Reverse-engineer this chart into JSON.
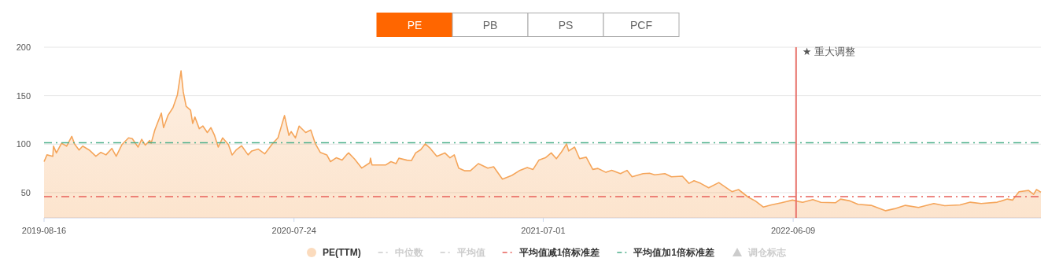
{
  "chart_data": {
    "type": "area",
    "annotations": [
      "PE",
      "PB",
      "PS",
      "PCF"
    ],
    "xlim": [
      "2019-08-16",
      "2023-05-15"
    ],
    "xticks": [
      "2019-08-16",
      "2020-07-24",
      "2021-07-01",
      "2022-06-09"
    ],
    "ylim": [
      24,
      200
    ],
    "yticks": [
      50,
      100,
      150,
      200
    ],
    "grid": "y",
    "legend": "bottom",
    "series": [
      {
        "name": "PE(TTM)",
        "color": "#f5a55a",
        "x": [
          "2019-08-16",
          "2019-08-20",
          "2019-08-28",
          "2019-08-29",
          "2019-09-02",
          "2019-09-09",
          "2019-09-16",
          "2019-09-23",
          "2019-09-27",
          "2019-10-03",
          "2019-10-08",
          "2019-10-17",
          "2019-10-26",
          "2019-11-02",
          "2019-11-09",
          "2019-11-17",
          "2019-11-23",
          "2019-12-01",
          "2019-12-10",
          "2019-12-15",
          "2019-12-23",
          "2019-12-28",
          "2020-01-02",
          "2020-01-08",
          "2020-01-10",
          "2020-01-15",
          "2020-01-24",
          "2020-01-27",
          "2020-02-02",
          "2020-02-09",
          "2020-02-15",
          "2020-02-20",
          "2020-02-23",
          "2020-02-27",
          "2020-03-04",
          "2020-03-07",
          "2020-03-10",
          "2020-03-16",
          "2020-03-21",
          "2020-03-27",
          "2020-04-01",
          "2020-04-06",
          "2020-04-11",
          "2020-04-17",
          "2020-04-25",
          "2020-04-30",
          "2020-05-06",
          "2020-05-13",
          "2020-05-22",
          "2020-05-27",
          "2020-06-05",
          "2020-06-14",
          "2020-06-25",
          "2020-07-02",
          "2020-07-11",
          "2020-07-17",
          "2020-07-20",
          "2020-07-26",
          "2020-07-31",
          "2020-08-09",
          "2020-08-16",
          "2020-08-22",
          "2020-08-29",
          "2020-09-07",
          "2020-09-12",
          "2020-09-20",
          "2020-09-28",
          "2020-10-04",
          "2020-10-07",
          "2020-10-15",
          "2020-10-25",
          "2020-11-05",
          "2020-11-06",
          "2020-11-08",
          "2020-11-27",
          "2020-12-04",
          "2020-12-11",
          "2020-12-15",
          "2020-12-26",
          "2021-01-01",
          "2021-01-07",
          "2021-01-14",
          "2021-01-20",
          "2021-01-27",
          "2021-02-05",
          "2021-02-16",
          "2021-02-23",
          "2021-03-01",
          "2021-03-07",
          "2021-03-15",
          "2021-03-23",
          "2021-04-03",
          "2021-04-16",
          "2021-04-24",
          "2021-05-06",
          "2021-05-19",
          "2021-05-29",
          "2021-06-09",
          "2021-06-17",
          "2021-06-25",
          "2021-07-04",
          "2021-07-12",
          "2021-07-19",
          "2021-07-26",
          "2021-08-02",
          "2021-08-05",
          "2021-08-13",
          "2021-08-20",
          "2021-08-29",
          "2021-09-07",
          "2021-09-14",
          "2021-09-25",
          "2021-10-03",
          "2021-10-15",
          "2021-10-24",
          "2021-10-31",
          "2021-11-15",
          "2021-11-24",
          "2021-12-01",
          "2021-12-15",
          "2021-12-24",
          "2022-01-08",
          "2022-01-17",
          "2022-01-24",
          "2022-02-02",
          "2022-02-13",
          "2022-02-27",
          "2022-03-17",
          "2022-03-26",
          "2022-04-08",
          "2022-04-18",
          "2022-04-29",
          "2022-05-10",
          "2022-05-24",
          "2022-06-08",
          "2022-06-22",
          "2022-07-06",
          "2022-07-17",
          "2022-08-06",
          "2022-08-13",
          "2022-08-26",
          "2022-09-06",
          "2022-09-24",
          "2022-10-14",
          "2022-10-26",
          "2022-11-10",
          "2022-11-28",
          "2022-12-19",
          "2023-01-03",
          "2023-01-24",
          "2023-02-07",
          "2023-02-22",
          "2023-03-16",
          "2023-03-30",
          "2023-04-06",
          "2023-04-15",
          "2023-04-28",
          "2023-05-05",
          "2023-05-09",
          "2023-05-15"
        ],
        "values": [
          82,
          89,
          87.5,
          98,
          91,
          101,
          98,
          108,
          100,
          94,
          98,
          94,
          87.5,
          91.6,
          89,
          95.6,
          87.5,
          99.7,
          106.5,
          105.7,
          97,
          105,
          99,
          103.8,
          101,
          114.6,
          132,
          117,
          129.5,
          137.7,
          151,
          175.6,
          154,
          139,
          135,
          121.4,
          128,
          116,
          118.7,
          112,
          117,
          109,
          97,
          106.5,
          99.7,
          89,
          94.3,
          98.4,
          89,
          93,
          94.9,
          90,
          101,
          106.5,
          129.5,
          109,
          113,
          106.5,
          118.7,
          112,
          114.6,
          101,
          91.6,
          89,
          82,
          86,
          83.5,
          89,
          91,
          84.8,
          75.3,
          80.8,
          85.6,
          78.6,
          78.6,
          82,
          80,
          85.6,
          83.5,
          83,
          91,
          94.3,
          100.3,
          95.6,
          87.5,
          91,
          86,
          89,
          75.3,
          72.6,
          72.6,
          80,
          75.3,
          76.7,
          64,
          67.8,
          72.6,
          76,
          74,
          83.5,
          86,
          91,
          85,
          92,
          100.3,
          93,
          97,
          85,
          86.5,
          74,
          75,
          71,
          73,
          69.6,
          73,
          66.4,
          69.6,
          70,
          68.4,
          69.6,
          66.4,
          67,
          59.6,
          62.3,
          59.6,
          55,
          60.4,
          51,
          53.2,
          45.5,
          41.5,
          35.2,
          37.4,
          39.6,
          42.3,
          40,
          42.8,
          40,
          39.6,
          43.4,
          41.5,
          38,
          36.9,
          31.4,
          33.4,
          36.9,
          34.7,
          38.8,
          36.6,
          37.4,
          40.1,
          38.8,
          40.1,
          43.4,
          42.3,
          51,
          52.3,
          48.2,
          53.2,
          50.4
        ]
      },
      {
        "name": "中位数",
        "type": "line",
        "color": "#cccccc"
      },
      {
        "name": "平均值",
        "type": "line",
        "color": "#cccccc"
      },
      {
        "name": "调仓标志",
        "type": "scatter",
        "marker": "triangle",
        "color": "#cccccc"
      }
    ],
    "ref_lines": [
      {
        "axis": "y",
        "value": 46,
        "label": "平均值减1倍标准差",
        "color": "#e8605a",
        "line_style": "dashed"
      },
      {
        "axis": "y",
        "value": 101.5,
        "label": "平均值加1倍标准差",
        "color": "#4caf8a",
        "line_style": "dashed"
      },
      {
        "axis": "x",
        "value": "2022-06-13",
        "label": "★ 重大调整",
        "color": "#e8736b",
        "line_style": "solid"
      }
    ]
  }
}
